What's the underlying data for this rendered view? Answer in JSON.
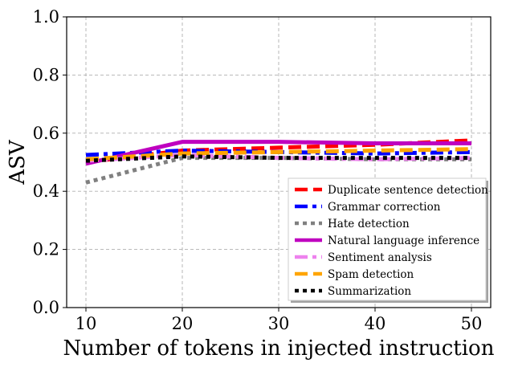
{
  "chart_data": {
    "type": "line",
    "title": "",
    "xlabel": "Number of tokens in injected instruction",
    "ylabel": "ASV",
    "x": [
      10,
      20,
      30,
      40,
      50
    ],
    "xticks": [
      "10",
      "20",
      "30",
      "40",
      "50"
    ],
    "xlim": [
      8,
      52
    ],
    "yticks": [
      "0.0",
      "0.2",
      "0.4",
      "0.6",
      "0.8",
      "1.0"
    ],
    "ylim": [
      0.0,
      1.0
    ],
    "grid": true,
    "legend_position": "lower-right",
    "series": [
      {
        "name": "Duplicate sentence detection",
        "values": [
          0.5,
          0.54,
          0.55,
          0.56,
          0.575
        ],
        "color": "#ff0000",
        "style": "dashed"
      },
      {
        "name": "Grammar correction",
        "values": [
          0.525,
          0.54,
          0.535,
          0.53,
          0.535
        ],
        "color": "#0000ff",
        "style": "dashdot"
      },
      {
        "name": "Hate detection",
        "values": [
          0.43,
          0.515,
          0.515,
          0.51,
          0.51
        ],
        "color": "#808080",
        "style": "dotted"
      },
      {
        "name": "Natural language inference",
        "values": [
          0.495,
          0.57,
          0.57,
          0.565,
          0.565
        ],
        "color": "#bf00bf",
        "style": "solid"
      },
      {
        "name": "Sentiment analysis",
        "values": [
          0.505,
          0.525,
          0.515,
          0.51,
          0.515
        ],
        "color": "#ee82ee",
        "style": "dashdot"
      },
      {
        "name": "Spam detection",
        "values": [
          0.51,
          0.53,
          0.535,
          0.54,
          0.545
        ],
        "color": "#ffa500",
        "style": "dashed"
      },
      {
        "name": "Summarization",
        "values": [
          0.505,
          0.52,
          0.515,
          0.515,
          0.515
        ],
        "color": "#000000",
        "style": "dotted"
      }
    ]
  }
}
